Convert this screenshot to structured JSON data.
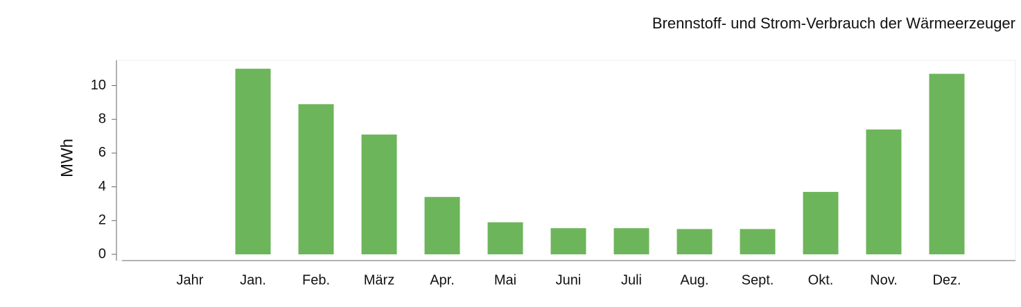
{
  "chart_data": {
    "type": "bar",
    "title": "Brennstoff- und Strom-Verbrauch der Wärmeerzeuger",
    "y_label": "MWh",
    "categories": [
      "Jahr",
      "Jan.",
      "Feb.",
      "März",
      "Apr.",
      "Mai",
      "Juni",
      "Juli",
      "Aug.",
      "Sept.",
      "Okt.",
      "Nov.",
      "Dez."
    ],
    "values": [
      null,
      11.0,
      8.9,
      7.1,
      3.4,
      1.9,
      1.55,
      1.55,
      1.5,
      1.5,
      3.7,
      7.4,
      10.7
    ],
    "color": "#6db55b",
    "ylim": [
      0,
      11.5
    ],
    "yticks": [
      0,
      2,
      4,
      6,
      8,
      10
    ],
    "grid": false
  }
}
